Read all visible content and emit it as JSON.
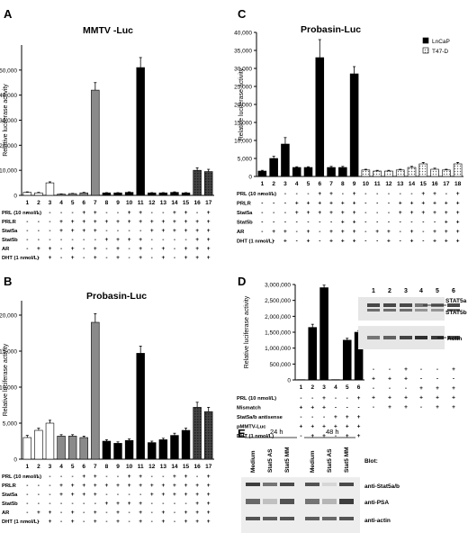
{
  "panels": {
    "A": {
      "letter": "A",
      "title": "MMTV -Luc"
    },
    "B": {
      "letter": "B",
      "title": "Probasin-Luc"
    },
    "C": {
      "letter": "C",
      "title": "Probasin-Luc"
    },
    "D": {
      "letter": "D"
    },
    "E": {
      "letter": "E"
    }
  },
  "chart_data": [
    {
      "id": "A",
      "type": "bar",
      "title": "MMTV -Luc",
      "ylabel": "Relative luciferase activity",
      "ylim": [
        0,
        60000
      ],
      "yticks": [
        0,
        10000,
        20000,
        30000,
        40000,
        50000
      ],
      "ytick_labels": [
        "0",
        "10,000",
        "20,000",
        "30,000",
        "40,000",
        "50,000"
      ],
      "categories": [
        "1",
        "2",
        "3",
        "4",
        "5",
        "6",
        "7",
        "8",
        "9",
        "10",
        "11",
        "12",
        "13",
        "14",
        "15",
        "16",
        "17"
      ],
      "values": [
        1200,
        1000,
        5000,
        500,
        700,
        1000,
        42000,
        1000,
        1000,
        1200,
        51000,
        1000,
        1000,
        1200,
        1000,
        10000,
        9500
      ],
      "errors": [
        200,
        200,
        400,
        100,
        100,
        200,
        3000,
        100,
        100,
        200,
        4000,
        100,
        100,
        200,
        100,
        1000,
        900
      ],
      "fills": [
        "white",
        "white",
        "white",
        "gray",
        "gray",
        "gray",
        "gray",
        "black",
        "black",
        "black",
        "black",
        "black",
        "black",
        "black",
        "black",
        "hatch",
        "hatch"
      ],
      "conditions": [
        {
          "label": "PRL (10 nmol/L)",
          "marks": [
            "-",
            "-",
            "-",
            "-",
            "-",
            "+",
            "+",
            "-",
            "-",
            "+",
            "+",
            "-",
            "-",
            "+",
            "+",
            "-",
            "+"
          ]
        },
        {
          "label": "PRLR",
          "marks": [
            "-",
            "-",
            "-",
            "+",
            "+",
            "+",
            "+",
            "+",
            "+",
            "+",
            "+",
            "+",
            "+",
            "+",
            "+",
            "+",
            "+"
          ]
        },
        {
          "label": "Stat5a",
          "marks": [
            "-",
            "-",
            "-",
            "+",
            "+",
            "+",
            "+",
            "-",
            "-",
            "-",
            "-",
            "+",
            "+",
            "+",
            "+",
            "+",
            "+"
          ]
        },
        {
          "label": "Stat5b",
          "marks": [
            "-",
            "-",
            "-",
            "-",
            "-",
            "-",
            "-",
            "+",
            "+",
            "+",
            "+",
            "-",
            "-",
            "-",
            "-",
            "+",
            "+"
          ]
        },
        {
          "label": "AR",
          "marks": [
            "-",
            "+",
            "+",
            "-",
            "+",
            "-",
            "+",
            "-",
            "+",
            "-",
            "+",
            "-",
            "+",
            "-",
            "+",
            "+",
            "+"
          ]
        },
        {
          "label": "DHT (1 nmol/L)",
          "marks": [
            "-",
            "-",
            "+",
            "-",
            "+",
            "-",
            "+",
            "-",
            "+",
            "-",
            "+",
            "-",
            "+",
            "-",
            "+",
            "+",
            "+"
          ]
        }
      ]
    },
    {
      "id": "B",
      "type": "bar",
      "title": "Probasin-Luc",
      "ylabel": "Relative luciferase activity",
      "ylim": [
        0,
        22000
      ],
      "yticks": [
        0,
        5000,
        10000,
        15000,
        20000
      ],
      "ytick_labels": [
        "0",
        "5,000",
        "10,000",
        "15,000",
        "20,000"
      ],
      "categories": [
        "1",
        "2",
        "3",
        "4",
        "5",
        "6",
        "7",
        "8",
        "9",
        "10",
        "11",
        "12",
        "13",
        "14",
        "15",
        "16",
        "17"
      ],
      "values": [
        3000,
        4000,
        5000,
        3200,
        3200,
        3000,
        19000,
        2500,
        2200,
        2600,
        14700,
        2300,
        2700,
        3300,
        4000,
        7200,
        6600
      ],
      "errors": [
        300,
        300,
        400,
        200,
        200,
        200,
        1200,
        200,
        200,
        200,
        1000,
        200,
        200,
        300,
        300,
        700,
        600
      ],
      "fills": [
        "white",
        "white",
        "white",
        "gray",
        "gray",
        "gray",
        "gray",
        "black",
        "black",
        "black",
        "black",
        "black",
        "black",
        "black",
        "black",
        "hatch",
        "hatch"
      ],
      "conditions": [
        {
          "label": "PRL (10 nmol/L)",
          "marks": [
            "-",
            "-",
            "-",
            "-",
            "-",
            "+",
            "+",
            "-",
            "-",
            "+",
            "+",
            "-",
            "-",
            "+",
            "+",
            "-",
            "+"
          ]
        },
        {
          "label": "PRLR",
          "marks": [
            "-",
            "-",
            "-",
            "+",
            "+",
            "+",
            "+",
            "+",
            "+",
            "+",
            "+",
            "+",
            "+",
            "+",
            "+",
            "+",
            "+"
          ]
        },
        {
          "label": "Stat5a",
          "marks": [
            "-",
            "-",
            "-",
            "+",
            "+",
            "+",
            "+",
            "-",
            "-",
            "-",
            "-",
            "+",
            "+",
            "+",
            "+",
            "+",
            "+"
          ]
        },
        {
          "label": "Stat5b",
          "marks": [
            "-",
            "-",
            "-",
            "-",
            "-",
            "-",
            "-",
            "+",
            "+",
            "+",
            "+",
            "-",
            "-",
            "-",
            "-",
            "+",
            "+"
          ]
        },
        {
          "label": "AR",
          "marks": [
            "-",
            "+",
            "+",
            "-",
            "+",
            "-",
            "+",
            "-",
            "+",
            "-",
            "+",
            "-",
            "+",
            "-",
            "+",
            "+",
            "+"
          ]
        },
        {
          "label": "DHT (1 nmol/L)",
          "marks": [
            "-",
            "-",
            "+",
            "-",
            "+",
            "-",
            "+",
            "-",
            "+",
            "-",
            "+",
            "-",
            "+",
            "-",
            "+",
            "+",
            "+"
          ]
        }
      ]
    },
    {
      "id": "C",
      "type": "bar",
      "title": "Probasin-Luc",
      "ylabel": "Relative luciferase activity",
      "ylim": [
        0,
        40000
      ],
      "yticks": [
        0,
        5000,
        10000,
        15000,
        20000,
        25000,
        30000,
        35000,
        40000
      ],
      "ytick_labels": [
        "0",
        "5,000",
        "10,000",
        "15,000",
        "20,000",
        "25,000",
        "30,000",
        "35,000",
        "40,000"
      ],
      "categories": [
        "1",
        "2",
        "3",
        "4",
        "5",
        "6",
        "7",
        "8",
        "9",
        "10",
        "11",
        "12",
        "13",
        "14",
        "15",
        "16",
        "17",
        "18"
      ],
      "series": [
        {
          "name": "LnCaP",
          "values": [
            1500,
            5000,
            9000,
            2500,
            2500,
            33000,
            2500,
            2500,
            28500,
            null,
            null,
            null,
            null,
            null,
            null,
            null,
            null,
            null
          ],
          "errors": [
            200,
            600,
            1800,
            200,
            200,
            5000,
            300,
            300,
            2000,
            null,
            null,
            null,
            null,
            null,
            null,
            null,
            null,
            null
          ]
        },
        {
          "name": "T47-D",
          "values": [
            null,
            null,
            null,
            null,
            null,
            null,
            null,
            null,
            null,
            1800,
            1500,
            1500,
            1800,
            2500,
            3500,
            2000,
            1800,
            3500
          ],
          "errors": [
            null,
            null,
            null,
            null,
            null,
            null,
            null,
            null,
            null,
            200,
            200,
            200,
            200,
            300,
            400,
            300,
            200,
            400
          ]
        }
      ],
      "legend": "top-right",
      "conditions": [
        {
          "label": "PRL (10 nmol/L)",
          "marks": [
            "-",
            "-",
            "-",
            "-",
            "-",
            "+",
            "+",
            "-",
            "+",
            "-",
            "-",
            "-",
            "-",
            "-",
            "+",
            "+",
            "-",
            "+"
          ]
        },
        {
          "label": "PRLR",
          "marks": [
            "-",
            "-",
            "-",
            "+",
            "+",
            "+",
            "+",
            "+",
            "+",
            "-",
            "-",
            "-",
            "+",
            "+",
            "+",
            "+",
            "+",
            "+"
          ]
        },
        {
          "label": "Stat5a",
          "marks": [
            "-",
            "-",
            "-",
            "+",
            "+",
            "+",
            "+",
            "+",
            "+",
            "-",
            "-",
            "-",
            "+",
            "+",
            "+",
            "+",
            "+",
            "+"
          ]
        },
        {
          "label": "Stat5b",
          "marks": [
            "-",
            "-",
            "-",
            "-",
            "-",
            "-",
            "-",
            "+",
            "+",
            "-",
            "-",
            "-",
            "-",
            "-",
            "-",
            "-",
            "+",
            "+"
          ]
        },
        {
          "label": "AR",
          "marks": [
            "-",
            "+",
            "+",
            "-",
            "+",
            "-",
            "+",
            "+",
            "+",
            "-",
            "+",
            "+",
            "-",
            "+",
            "-",
            "+",
            "+",
            "+"
          ]
        },
        {
          "label": "DHT (1 nmol/L)",
          "marks": [
            "-",
            "-",
            "+",
            "-",
            "+",
            "-",
            "+",
            "+",
            "+",
            "-",
            "-",
            "+",
            "-",
            "+",
            "-",
            "+",
            "+",
            "+"
          ]
        }
      ]
    },
    {
      "id": "D",
      "type": "bar",
      "ylabel": "Relative luciferase activity",
      "ylim": [
        0,
        3000000
      ],
      "yticks": [
        0,
        500000,
        1000000,
        1500000,
        2000000,
        2500000,
        3000000
      ],
      "ytick_labels": [
        "0",
        "500,000",
        "1,000,000",
        "1,500,000",
        "2,000,000",
        "2,500,000",
        "3,000,000"
      ],
      "categories": [
        "1",
        "2",
        "3",
        "4",
        "5",
        "6"
      ],
      "values": [
        10000,
        1650000,
        2900000,
        10000,
        1250000,
        1500000
      ],
      "errors": [
        0,
        100000,
        80000,
        0,
        60000,
        50000
      ],
      "conditions": [
        {
          "label": "PRL (10 nmol/L)",
          "marks": [
            "-",
            "-",
            "+",
            "-",
            "-",
            "+"
          ]
        },
        {
          "label": "Mismatch",
          "marks": [
            "+",
            "+",
            "+",
            "-",
            "-",
            "-"
          ]
        },
        {
          "label": "Stat5a/b antisense",
          "marks": [
            "-",
            "-",
            "-",
            "+",
            "+",
            "+"
          ]
        },
        {
          "label": "pMMTV-Luc",
          "marks": [
            "+",
            "+",
            "+",
            "+",
            "+",
            "+"
          ]
        },
        {
          "label": "DHT (1 nmol/L)",
          "marks": [
            "-",
            "+",
            "+",
            "-",
            "+",
            "+"
          ]
        }
      ]
    }
  ],
  "blotD": {
    "lanes": [
      "1",
      "2",
      "3",
      "4",
      "5",
      "6"
    ],
    "labels": {
      "stat5a": "STAT5a",
      "stat5b": "STAT5b",
      "actin": "Actin"
    },
    "marks": [
      [
        "-",
        "-",
        "+",
        "-",
        "-",
        "+"
      ],
      [
        "+",
        "+",
        "+",
        "-",
        "-",
        "-"
      ],
      [
        "-",
        "-",
        "-",
        "+",
        "+",
        "+"
      ],
      [
        "+",
        "+",
        "+",
        "+",
        "+",
        "+"
      ],
      [
        "-",
        "+",
        "+",
        "-",
        "+",
        "+"
      ]
    ]
  },
  "blotE": {
    "time_24": "24 h",
    "time_48": "48 h",
    "lanes": [
      "Medium",
      "Stat5 AS",
      "Stat5 MM",
      "Medium",
      "Stat5 AS",
      "Stat5 MM"
    ],
    "blot_label": "Blot:",
    "rows": [
      "anti-Stat5a/b",
      "anti-PSA",
      "anti-actin"
    ]
  }
}
